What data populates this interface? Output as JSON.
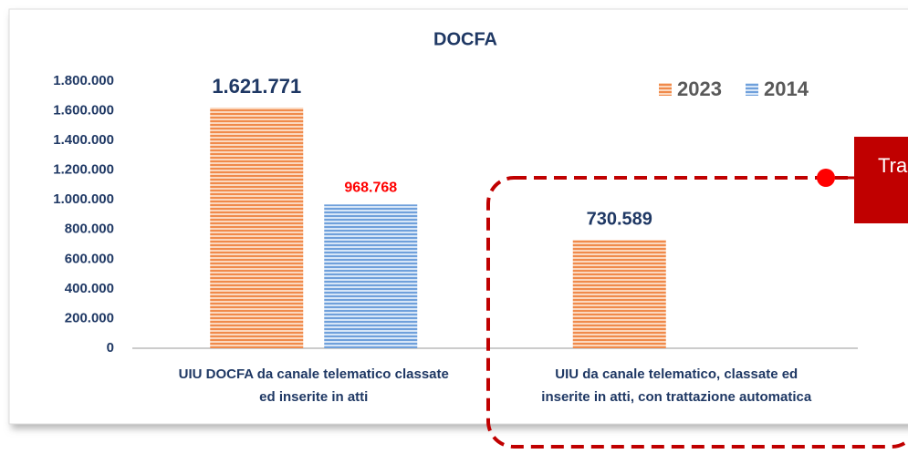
{
  "chart_data": {
    "type": "bar",
    "title": "DOCFA",
    "categories": [
      [
        "UIU DOCFA da canale telematico classate",
        "ed inserite in atti"
      ],
      [
        "UIU  da canale telematico, classate ed",
        "inserite in atti, con trattazione automatica"
      ]
    ],
    "series": [
      {
        "name": "2023",
        "color": "#f4a46c",
        "label_color": "#1f3864",
        "values": [
          1621771,
          730589
        ],
        "value_labels": [
          "1.621.771",
          "730.589"
        ]
      },
      {
        "name": "2014",
        "color": "#8db4e2",
        "label_color": "#ff0000",
        "values": [
          968768,
          null
        ],
        "value_labels": [
          "968.768",
          null
        ]
      }
    ],
    "ylim": [
      0,
      1800000
    ],
    "yticks": [
      0,
      {
        "value": 200000,
        "label": "200.000"
      },
      {
        "value": 400000,
        "label": "400.000"
      },
      {
        "value": 600000,
        "label": "600.000"
      },
      {
        "value": 800000,
        "label": "800.000"
      },
      {
        "value": 1000000,
        "label": "1.000.000"
      },
      {
        "value": 1200000,
        "label": "1.200.000"
      },
      {
        "value": 1400000,
        "label": "1.400.000"
      },
      {
        "value": 1600000,
        "label": "1.600.000"
      },
      {
        "value": 1800000,
        "label": "1.800.000"
      }
    ],
    "legend": "top-right",
    "annotation": "Tra"
  }
}
